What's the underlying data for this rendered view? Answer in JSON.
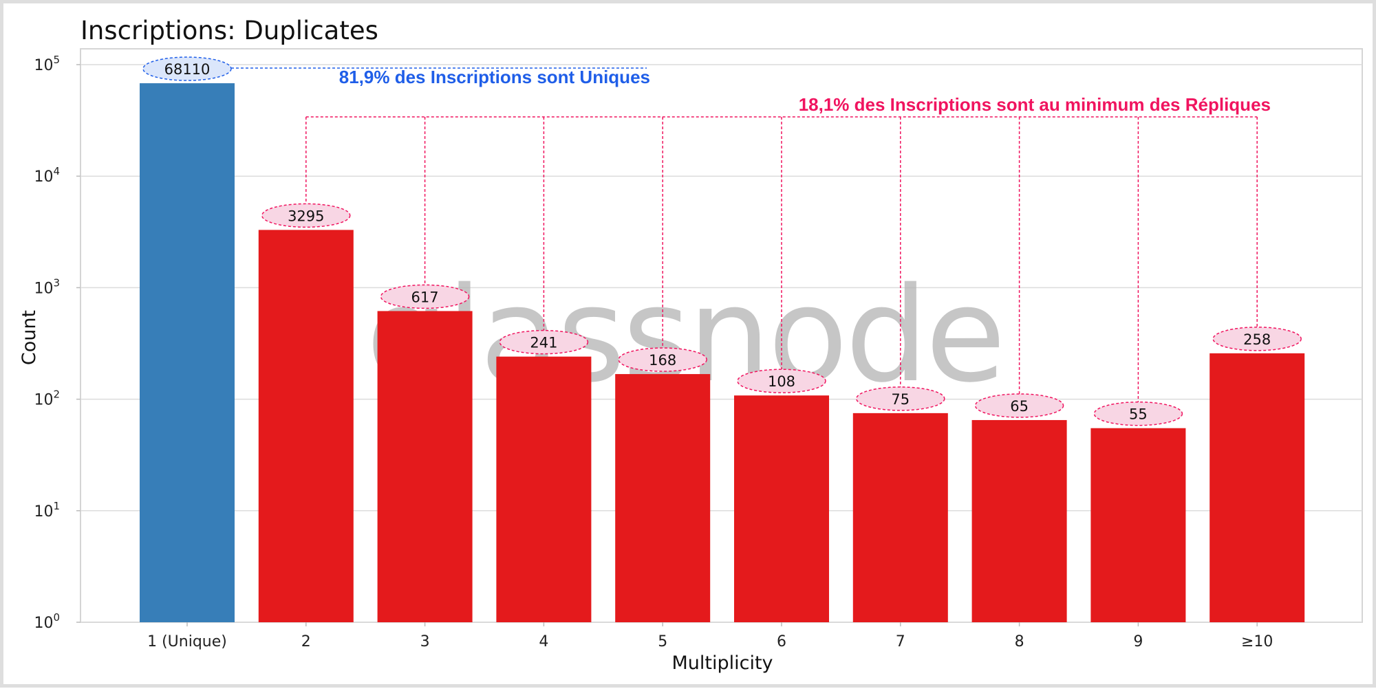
{
  "chart_data": {
    "type": "bar",
    "title": "Inscriptions: Duplicates",
    "xlabel": "Multiplicity",
    "ylabel": "Count",
    "yscale": "log",
    "ylim": [
      1,
      100000
    ],
    "yticks": [
      {
        "value": 1,
        "base": "10",
        "exp": "0"
      },
      {
        "value": 10,
        "base": "10",
        "exp": "1"
      },
      {
        "value": 100,
        "base": "10",
        "exp": "2"
      },
      {
        "value": 1000,
        "base": "10",
        "exp": "3"
      },
      {
        "value": 10000,
        "base": "10",
        "exp": "4"
      },
      {
        "value": 100000,
        "base": "10",
        "exp": "5"
      }
    ],
    "grid": true,
    "categories": [
      "1 (Unique)",
      "2",
      "3",
      "4",
      "5",
      "6",
      "7",
      "8",
      "9",
      "≥10"
    ],
    "values": [
      68110,
      3295,
      617,
      241,
      168,
      108,
      75,
      65,
      55,
      258
    ],
    "data_labels": [
      "68110",
      "3295",
      "617",
      "241",
      "168",
      "108",
      "75",
      "65",
      "55",
      "258"
    ],
    "colors": {
      "unique_bar": "#377eb8",
      "duplicate_bar": "#e41a1c",
      "unique_annotation": "#1f5ee8",
      "duplicate_annotation": "#f0145f",
      "unique_label_fill": "#dbe6fb",
      "duplicate_label_fill": "#f8d6e4"
    },
    "annotations": {
      "unique": "81,9% des Inscriptions sont Uniques",
      "duplicates": "18,1% des Inscriptions sont au minimum des Répliques"
    },
    "watermark": "glassnode"
  }
}
